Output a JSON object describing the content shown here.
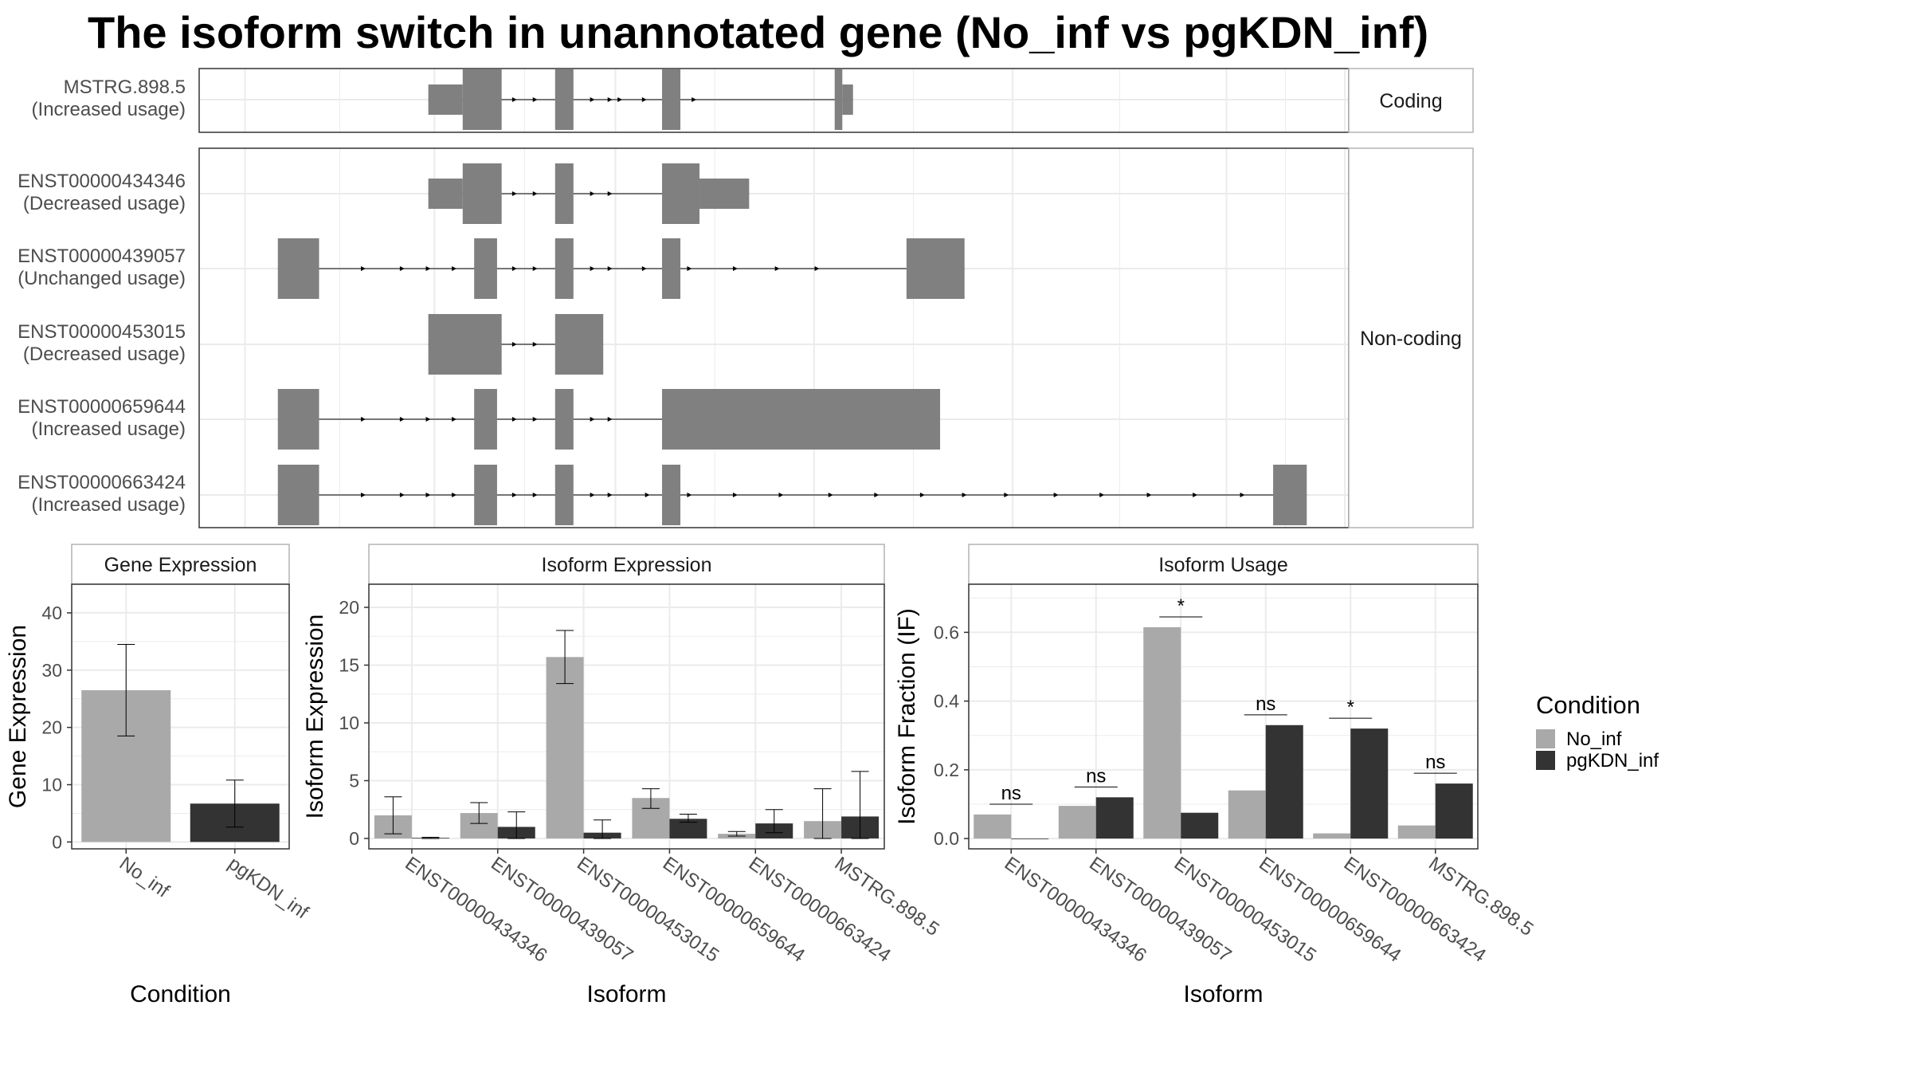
{
  "title": "The isoform switch in unannotated gene (No_inf vs pgKDN_inf)",
  "colors": {
    "No_inf": "#a9a9a9",
    "pgKDN_inf": "#333333",
    "exon": "#808080",
    "grid": "#ebebeb",
    "strip": "#ffffff",
    "panel_border": "#333333",
    "strip_border": "#b3b3b3"
  },
  "chart_data": [
    {
      "type": "gene-structure",
      "panel": "transcripts",
      "facets": [
        {
          "label": "Coding",
          "transcripts": [
            "MSTRG.898.5"
          ]
        },
        {
          "label": "Non-coding",
          "transcripts": [
            "ENST00000434346",
            "ENST00000439057",
            "ENST00000453015",
            "ENST00000659644",
            "ENST00000663424"
          ]
        }
      ],
      "transcripts": [
        {
          "id": "MSTRG.898.5",
          "usage": "(Increased usage)",
          "facet": "Coding",
          "exons": [
            [
              300,
              345,
              "thin"
            ],
            [
              345,
              396,
              "thick"
            ],
            [
              466,
              490,
              "thick"
            ],
            [
              606,
              630,
              "thick"
            ],
            [
              832,
              842,
              "thick"
            ],
            [
              842,
              856,
              "thin"
            ]
          ],
          "arrows": [
            416,
            443,
            518,
            541,
            554,
            586,
            617,
            651
          ]
        },
        {
          "id": "ENST00000434346",
          "usage": "(Decreased usage)",
          "facet": "Non-coding",
          "exons": [
            [
              300,
              345,
              "thin"
            ],
            [
              345,
              396,
              "thick"
            ],
            [
              466,
              490,
              "thick"
            ],
            [
              606,
              655,
              "thick"
            ],
            [
              655,
              720,
              "thin"
            ]
          ],
          "arrows": [
            416,
            443,
            518,
            541
          ]
        },
        {
          "id": "ENST00000439057",
          "usage": "(Unchanged usage)",
          "facet": "Non-coding",
          "exons": [
            [
              103,
              157,
              "thick"
            ],
            [
              360,
              390,
              "thick"
            ],
            [
              466,
              490,
              "thick"
            ],
            [
              606,
              630,
              "thick"
            ],
            [
              926,
              1002,
              "thick"
            ]
          ],
          "arrows": [
            218,
            269,
            303,
            337,
            416,
            443,
            518,
            541,
            586,
            645,
            705,
            760,
            812
          ]
        },
        {
          "id": "ENST00000453015",
          "usage": "(Decreased usage)",
          "facet": "Non-coding",
          "exons": [
            [
              300,
              396,
              "thick"
            ],
            [
              466,
              529,
              "thick"
            ]
          ],
          "arrows": [
            416,
            443
          ]
        },
        {
          "id": "ENST00000659644",
          "usage": "(Increased usage)",
          "facet": "Non-coding",
          "exons": [
            [
              103,
              157,
              "thick"
            ],
            [
              360,
              390,
              "thick"
            ],
            [
              466,
              490,
              "thick"
            ],
            [
              606,
              970,
              "thick"
            ]
          ],
          "arrows": [
            218,
            269,
            303,
            337,
            416,
            443,
            518,
            541
          ]
        },
        {
          "id": "ENST00000663424",
          "usage": "(Increased usage)",
          "facet": "Non-coding",
          "exons": [
            [
              103,
              157,
              "thick"
            ],
            [
              360,
              390,
              "thick"
            ],
            [
              466,
              490,
              "thick"
            ],
            [
              606,
              630,
              "thick"
            ],
            [
              1406,
              1450,
              "thick"
            ]
          ],
          "arrows": [
            218,
            269,
            303,
            337,
            416,
            443,
            518,
            541,
            590,
            645,
            705,
            765,
            830,
            890,
            950,
            1005,
            1060,
            1125,
            1185,
            1247,
            1307,
            1369
          ]
        }
      ]
    },
    {
      "type": "bar",
      "title": "Gene Expression",
      "xlabel": "Condition",
      "ylabel": "Gene Expression",
      "categories": [
        "No_inf",
        "pgKDN_inf"
      ],
      "values": [
        26.5,
        6.7
      ],
      "error": [
        [
          18.5,
          34.5
        ],
        [
          2.6,
          10.8
        ]
      ],
      "ylim": [
        -1.2,
        45
      ],
      "yticks": [
        0,
        10,
        20,
        30,
        40
      ],
      "grid": true
    },
    {
      "type": "bar",
      "title": "Isoform Expression",
      "xlabel": "Isoform",
      "ylabel": "Isoform Expression",
      "categories": [
        "ENST00000434346",
        "ENST00000439057",
        "ENST00000453015",
        "ENST00000659644",
        "ENST00000663424",
        "MSTRG.898.5"
      ],
      "series": [
        {
          "name": "No_inf",
          "values": [
            2.0,
            2.2,
            15.7,
            3.5,
            0.4,
            1.5
          ],
          "error": [
            [
              0.4,
              3.6
            ],
            [
              1.3,
              3.1
            ],
            [
              13.4,
              18.0
            ],
            [
              2.6,
              4.3
            ],
            [
              0.2,
              0.6
            ],
            [
              0.0,
              4.3
            ]
          ]
        },
        {
          "name": "pgKDN_inf",
          "values": [
            0.05,
            1.0,
            0.5,
            1.7,
            1.3,
            1.9
          ],
          "error": [
            [
              0.0,
              0.1
            ],
            [
              0.0,
              2.3
            ],
            [
              0.0,
              1.6
            ],
            [
              1.4,
              2.1
            ],
            [
              0.5,
              2.5
            ],
            [
              0.0,
              5.8
            ]
          ]
        }
      ],
      "ylim": [
        -0.9,
        22
      ],
      "yticks": [
        0,
        5,
        10,
        15,
        20
      ],
      "grid": true
    },
    {
      "type": "bar",
      "title": "Isoform Usage",
      "xlabel": "Isoform",
      "ylabel": "Isoform Fraction (IF)",
      "categories": [
        "ENST00000434346",
        "ENST00000439057",
        "ENST00000453015",
        "ENST00000659644",
        "ENST00000663424",
        "MSTRG.898.5"
      ],
      "series": [
        {
          "name": "No_inf",
          "values": [
            0.07,
            0.095,
            0.615,
            0.14,
            0.015,
            0.038
          ]
        },
        {
          "name": "pgKDN_inf",
          "values": [
            0.0,
            0.12,
            0.075,
            0.33,
            0.32,
            0.16
          ]
        }
      ],
      "significance": [
        {
          "label": "ns",
          "y": 0.1
        },
        {
          "label": "ns",
          "y": 0.15
        },
        {
          "label": "*",
          "y": 0.645
        },
        {
          "label": "ns",
          "y": 0.36
        },
        {
          "label": "*",
          "y": 0.35
        },
        {
          "label": "ns",
          "y": 0.19
        }
      ],
      "ylim": [
        -0.03,
        0.74
      ],
      "yticks": [
        0.0,
        0.2,
        0.4,
        0.6
      ],
      "grid": true
    }
  ],
  "legend": {
    "title": "Condition",
    "items": [
      {
        "label": "No_inf",
        "color": "#a9a9a9"
      },
      {
        "label": "pgKDN_inf",
        "color": "#333333"
      }
    ],
    "placement": "right"
  }
}
